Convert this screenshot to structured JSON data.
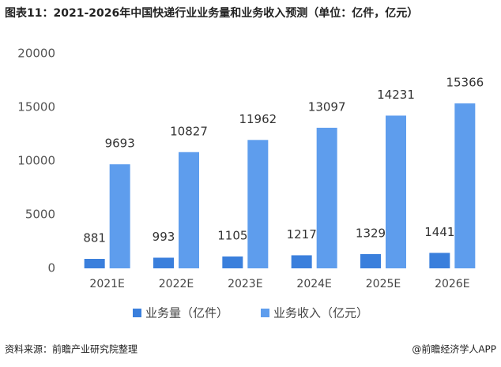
{
  "chart_data": {
    "type": "bar",
    "title": "图表11：2021-2026年中国快递行业业务量和业务收入预测（单位：亿件，亿元）",
    "categories": [
      "2021E",
      "2022E",
      "2023E",
      "2024E",
      "2025E",
      "2026E"
    ],
    "series": [
      {
        "name": "业务量（亿件）",
        "color": "#3a7fdc",
        "values": [
          881,
          993,
          1105,
          1217,
          1329,
          1441
        ]
      },
      {
        "name": "业务收入（亿元）",
        "color": "#5e9ded",
        "values": [
          9693,
          10827,
          11962,
          13097,
          14231,
          15366
        ]
      }
    ],
    "ylim": [
      0,
      20000
    ],
    "yticks": [
      0,
      5000,
      10000,
      15000,
      20000
    ],
    "legend": "bottom",
    "source": "资料来源：前瞻产业研究院整理",
    "credit": "@前瞻经济学人APP"
  }
}
